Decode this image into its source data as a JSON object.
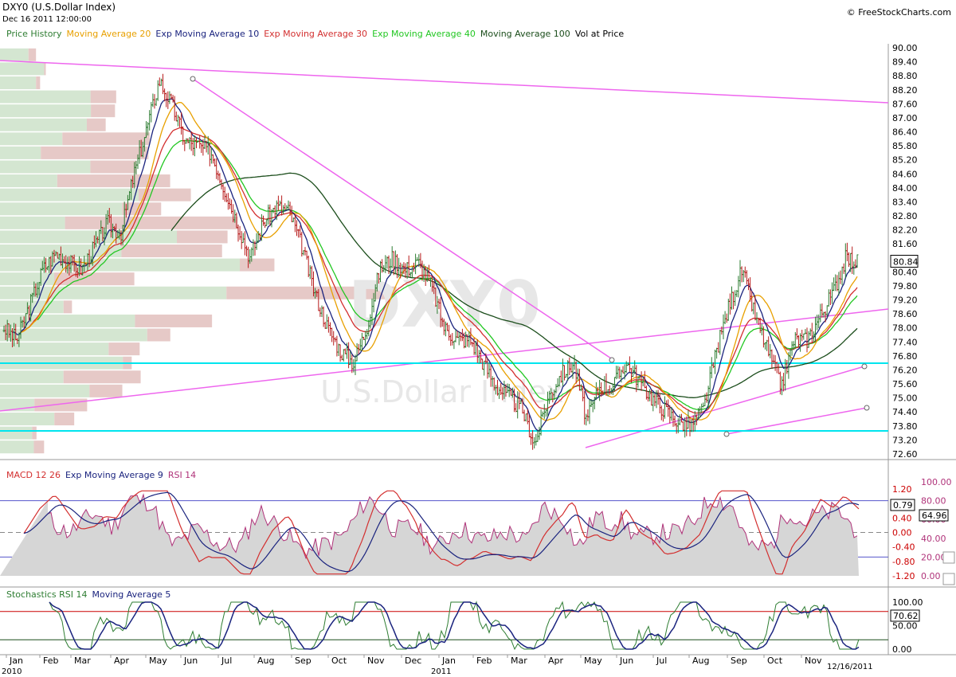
{
  "header": {
    "title": "DXY0 (U.S.Dollar Index)",
    "date": "Dec 16 2011 12:00:00",
    "copyright": "© FreeStockCharts.com"
  },
  "watermark": {
    "symbol": "DXY0",
    "name": "U.S.Dollar Index"
  },
  "legend": [
    {
      "label": "Price History",
      "color": "#2e7d32"
    },
    {
      "label": "Moving Average 20",
      "color": "#e8a000"
    },
    {
      "label": "Exp Moving Average 10",
      "color": "#1a237e"
    },
    {
      "label": "Exp Moving Average 30",
      "color": "#d32f2f"
    },
    {
      "label": "Exp Moving Average 40",
      "color": "#22c722"
    },
    {
      "label": "Moving Average 100",
      "color": "#1b4d1b"
    },
    {
      "label": "Vol at Price",
      "color": "#000000"
    }
  ],
  "macd_legend": [
    {
      "label": "MACD 12 26",
      "color": "#d32f2f"
    },
    {
      "label": "Exp Moving Average 9",
      "color": "#1a237e"
    },
    {
      "label": "RSI 14",
      "color": "#b0337a"
    }
  ],
  "stoch_legend": [
    {
      "label": "Stochastics RSI 14",
      "color": "#2e7d32"
    },
    {
      "label": "Moving Average 5",
      "color": "#1a237e"
    }
  ],
  "colors": {
    "up": "#2e7d32",
    "down": "#b71c1c",
    "trendline": "#ee66ee",
    "support": "#00e5ee",
    "vol_green": "#d4e6d1",
    "vol_red": "#e6c9c7",
    "rsi_fill": "#d6d6d6",
    "grid": "#5555cc"
  },
  "chart_data": [
    {
      "type": "line",
      "panel": "price",
      "y_ticks": [
        "90.00",
        "89.40",
        "88.80",
        "88.20",
        "87.60",
        "87.00",
        "86.40",
        "85.80",
        "85.20",
        "84.60",
        "84.00",
        "83.40",
        "82.80",
        "82.20",
        "81.60",
        "81.00",
        "80.40",
        "79.80",
        "79.20",
        "78.60",
        "78.00",
        "77.40",
        "76.80",
        "76.20",
        "75.60",
        "75.00",
        "74.40",
        "73.80",
        "73.20",
        "72.60"
      ],
      "ylim": [
        72.3,
        90.3
      ],
      "last_value": "80.84",
      "series": [
        {
          "name": "Price History",
          "values": [
            78.0,
            77.5,
            79.0,
            80.5,
            81.2,
            80.8,
            80.5,
            81.5,
            82.5,
            82.0,
            84.5,
            86.5,
            88.6,
            87.5,
            86.0,
            85.8,
            85.5,
            84.0,
            82.5,
            81.0,
            82.5,
            83.2,
            83.0,
            81.5,
            79.5,
            78.0,
            77.0,
            76.5,
            78.0,
            80.5,
            81.0,
            80.5,
            80.8,
            79.8,
            78.0,
            77.5,
            77.5,
            76.5,
            75.5,
            75.0,
            74.5,
            73.0,
            75.0,
            76.0,
            76.5,
            74.0,
            75.5,
            75.5,
            76.5,
            75.8,
            75.0,
            74.5,
            74.0,
            73.8,
            74.5,
            77.0,
            79.0,
            80.5,
            78.5,
            77.0,
            75.5,
            77.5,
            77.5,
            78.5,
            79.5,
            81.0,
            80.8
          ]
        }
      ],
      "trendlines": [
        "descending resistance",
        "rising support",
        "upper resistance",
        "support lines at 76.45 and 73.50"
      ]
    },
    {
      "type": "line",
      "panel": "macd_rsi",
      "y_ticks_left": [
        "1.20",
        "0.80",
        "0.40",
        "0.00",
        "-0.40",
        "-0.80",
        "-1.20"
      ],
      "y_ticks_right": [
        "100.00",
        "80.00",
        "60.00",
        "40.00",
        "20.00",
        "0.00"
      ],
      "series": [
        {
          "name": "MACD 12 26",
          "last_value": "0.79"
        },
        {
          "name": "RSI 14",
          "last_value": "64.96"
        }
      ]
    },
    {
      "type": "line",
      "panel": "stochastics",
      "y_ticks": [
        "100.00",
        "50.00",
        "0.00"
      ],
      "series": [
        {
          "name": "Stochastics RSI 14",
          "last_value": "70.62"
        }
      ]
    }
  ],
  "x_axis": {
    "months": [
      "Jan",
      "Feb",
      "Mar",
      "Apr",
      "May",
      "Jun",
      "Jul",
      "Aug",
      "Sep",
      "Oct",
      "Nov",
      "Dec",
      "Jan",
      "Feb",
      "Mar",
      "Apr",
      "May",
      "Jun",
      "Jul",
      "Aug",
      "Sep",
      "Oct",
      "Nov"
    ],
    "years": [
      "2010",
      "2011"
    ],
    "end_date": "12/16/2011"
  }
}
